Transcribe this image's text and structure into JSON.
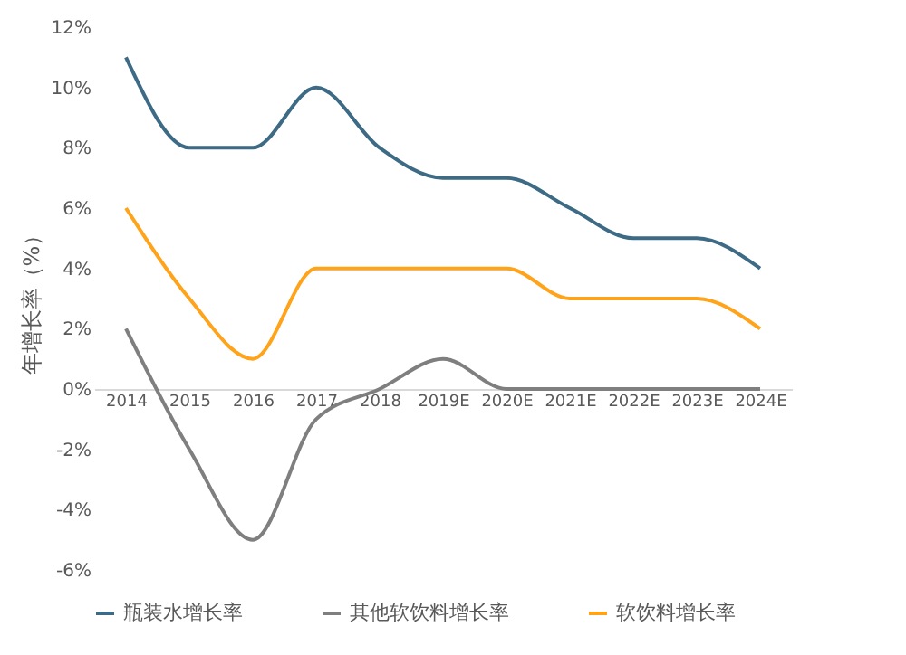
{
  "chart_data": {
    "type": "line",
    "ylabel": "年增长率（%）",
    "categories": [
      "2014",
      "2015",
      "2016",
      "2017",
      "2018",
      "2019E",
      "2020E",
      "2021E",
      "2022E",
      "2023E",
      "2024E"
    ],
    "series": [
      {
        "name": "瓶装水增长率",
        "color": "#3d6a85",
        "values": [
          11,
          8,
          8,
          10,
          8,
          7,
          7,
          6,
          5,
          5,
          4
        ]
      },
      {
        "name": "其他软饮料增长率",
        "color": "#7f7f7f",
        "values": [
          2,
          -2,
          -5,
          -1,
          0,
          1,
          0,
          0,
          0,
          0,
          0
        ]
      },
      {
        "name": "软饮料增长率",
        "color": "#ffa31a",
        "values": [
          6,
          3,
          1,
          4,
          4,
          4,
          4,
          3,
          3,
          3,
          2
        ]
      }
    ],
    "ylim": [
      -6,
      12
    ],
    "yticks": [
      {
        "value": -6,
        "label": "-6%"
      },
      {
        "value": -4,
        "label": "-4%"
      },
      {
        "value": -2,
        "label": "-2%"
      },
      {
        "value": 0,
        "label": "0%"
      },
      {
        "value": 2,
        "label": "2%"
      },
      {
        "value": 4,
        "label": "4%"
      },
      {
        "value": 6,
        "label": "6%"
      },
      {
        "value": 8,
        "label": "8%"
      },
      {
        "value": 10,
        "label": "10%"
      },
      {
        "value": 12,
        "label": "12%"
      }
    ],
    "legend": "bottom",
    "grid": false,
    "marker": "none",
    "line_style": "solid"
  }
}
